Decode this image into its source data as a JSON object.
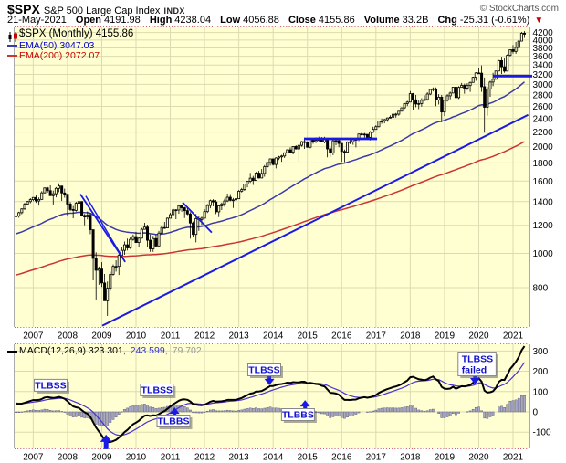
{
  "header": {
    "symbol": "$SPX",
    "name": "S&P 500 Large Cap Index",
    "exchange": "INDX",
    "copyright": "© StockCharts.com",
    "date": "21-May-2021",
    "fields": [
      {
        "label": "Open",
        "value": "4191.98"
      },
      {
        "label": "High",
        "value": "4238.04"
      },
      {
        "label": "Low",
        "value": "4056.88"
      },
      {
        "label": "Close",
        "value": "4155.86"
      },
      {
        "label": "Volume",
        "value": "33.2B"
      },
      {
        "label": "Chg",
        "value": "-25.31 (-0.61%)"
      }
    ],
    "chg_direction": "down",
    "chg_arrow_glyph": "▼"
  },
  "legend": {
    "spx": "$SPX (Monthly) 4155.86",
    "ema50": "EMA(50) 3047.03",
    "ema200": "EMA(200) 2072.07"
  },
  "macd_legend": {
    "black": "MACD(12,26,9) 323.301,",
    "blue": "243.599,",
    "gray": "79.702"
  },
  "colors": {
    "panel_bg": "#FFFFD2",
    "grid": "#DBDBB0",
    "tick_dash": "#CC5555",
    "side_border": "#AAAAAA",
    "candle": "#000000",
    "ema50": "#3A3AA8",
    "ema200": "#CC3333",
    "annotation_blue": "#1A1AE6",
    "macd_line": "#000000",
    "macd_signal": "#4B30CF",
    "histogram_fill": "#A9A9C9",
    "histogram_stroke": "#5F5F7E",
    "axis_text": "#000000",
    "ann_text_blue": "#1111CC",
    "box_border": "#888888",
    "box_shadow": "rgba(90,90,90,0.5)"
  },
  "chart_data": {
    "type": "candlestick",
    "title": "$SPX S&P 500 Large Cap Index (Monthly) with EMA(50), EMA(200) and MACD(12,26,9)",
    "timeframe": "Monthly, Jul 2006 - May 2021",
    "x_years": [
      "2007",
      "2008",
      "2009",
      "2010",
      "2011",
      "2012",
      "2013",
      "2014",
      "2015",
      "2016",
      "2017",
      "2018",
      "2019",
      "2020",
      "2021"
    ],
    "price_panel": {
      "log_scale": true,
      "ylim": [
        620,
        4343
      ],
      "yticks": [
        800,
        1000,
        1200,
        1400,
        1600,
        1800,
        2000,
        2200,
        2400,
        2600,
        2800,
        3000,
        3200,
        3400,
        3600,
        3800,
        4000,
        4200
      ],
      "first_open": 1270,
      "ema50_start": 1130,
      "ema200_start": 865,
      "candles": [
        [
          1280,
          1225,
          1276
        ],
        [
          1311,
          1261,
          1303
        ],
        [
          1340,
          1290,
          1335
        ],
        [
          1389,
          1327,
          1377
        ],
        [
          1407,
          1377,
          1400
        ],
        [
          1432,
          1385,
          1418
        ],
        [
          1441,
          1404,
          1438
        ],
        [
          1461,
          1389,
          1406
        ],
        [
          1438,
          1364,
          1420
        ],
        [
          1498,
          1416,
          1482
        ],
        [
          1535,
          1476,
          1530
        ],
        [
          1540,
          1484,
          1503
        ],
        [
          1556,
          1455,
          1455
        ],
        [
          1504,
          1370,
          1473
        ],
        [
          1538,
          1439,
          1526
        ],
        [
          1576,
          1489,
          1549
        ],
        [
          1552,
          1406,
          1481
        ],
        [
          1523,
          1436,
          1468
        ],
        [
          1471,
          1270,
          1378
        ],
        [
          1396,
          1316,
          1330
        ],
        [
          1360,
          1256,
          1322
        ],
        [
          1398,
          1312,
          1385
        ],
        [
          1440,
          1373,
          1400
        ],
        [
          1404,
          1272,
          1280
        ],
        [
          1292,
          1200,
          1267
        ],
        [
          1313,
          1247,
          1282
        ],
        [
          1303,
          1133,
          1166
        ],
        [
          1167,
          839,
          968
        ],
        [
          1007,
          741,
          896
        ],
        [
          918,
          815,
          903
        ],
        [
          944,
          804,
          825
        ],
        [
          875,
          735,
          735
        ],
        [
          833,
          666,
          797
        ],
        [
          888,
          783,
          872
        ],
        [
          930,
          866,
          919
        ],
        [
          956,
          888,
          919
        ],
        [
          996,
          869,
          987
        ],
        [
          1039,
          978,
          1020
        ],
        [
          1080,
          991,
          1057
        ],
        [
          1101,
          1019,
          1036
        ],
        [
          1113,
          1029,
          1095
        ],
        [
          1130,
          1085,
          1115
        ],
        [
          1150,
          1071,
          1073
        ],
        [
          1112,
          1044,
          1104
        ],
        [
          1180,
          1101,
          1169
        ],
        [
          1220,
          1170,
          1186
        ],
        [
          1205,
          1040,
          1089
        ],
        [
          1131,
          1010,
          1030
        ],
        [
          1120,
          1010,
          1101
        ],
        [
          1129,
          1039,
          1049
        ],
        [
          1157,
          1049,
          1141
        ],
        [
          1196,
          1131,
          1183
        ],
        [
          1227,
          1173,
          1180
        ],
        [
          1262,
          1186,
          1257
        ],
        [
          1302,
          1257,
          1286
        ],
        [
          1344,
          1289,
          1327
        ],
        [
          1332,
          1249,
          1325
        ],
        [
          1370,
          1294,
          1363
        ],
        [
          1370,
          1311,
          1345
        ],
        [
          1353,
          1258,
          1320
        ],
        [
          1356,
          1282,
          1292
        ],
        [
          1307,
          1101,
          1218
        ],
        [
          1230,
          1114,
          1131
        ],
        [
          1292,
          1074,
          1253
        ],
        [
          1277,
          1158,
          1246
        ],
        [
          1269,
          1202,
          1257
        ],
        [
          1333,
          1258,
          1312
        ],
        [
          1378,
          1300,
          1365
        ],
        [
          1419,
          1340,
          1408
        ],
        [
          1422,
          1357,
          1397
        ],
        [
          1415,
          1291,
          1310
        ],
        [
          1363,
          1266,
          1362
        ],
        [
          1391,
          1325,
          1379
        ],
        [
          1426,
          1354,
          1406
        ],
        [
          1474,
          1396,
          1440
        ],
        [
          1470,
          1403,
          1412
        ],
        [
          1433,
          1343,
          1416
        ],
        [
          1448,
          1398,
          1426
        ],
        [
          1509,
          1426,
          1498
        ],
        [
          1530,
          1485,
          1514
        ],
        [
          1570,
          1501,
          1569
        ],
        [
          1597,
          1536,
          1597
        ],
        [
          1687,
          1581,
          1630
        ],
        [
          1654,
          1560,
          1606
        ],
        [
          1698,
          1604,
          1685
        ],
        [
          1709,
          1627,
          1632
        ],
        [
          1730,
          1633,
          1681
        ],
        [
          1775,
          1646,
          1756
        ],
        [
          1813,
          1746,
          1805
        ],
        [
          1849,
          1768,
          1848
        ],
        [
          1851,
          1770,
          1782
        ],
        [
          1868,
          1737,
          1859
        ],
        [
          1884,
          1834,
          1872
        ],
        [
          1897,
          1814,
          1883
        ],
        [
          1924,
          1859,
          1923
        ],
        [
          1968,
          1915,
          1960
        ],
        [
          1991,
          1930,
          1930
        ],
        [
          2005,
          1904,
          2003
        ],
        [
          2019,
          1964,
          1972
        ],
        [
          2024,
          1820,
          2018
        ],
        [
          2076,
          2001,
          2067
        ],
        [
          2093,
          1972,
          2058
        ],
        [
          2072,
          1988,
          1994
        ],
        [
          2120,
          1980,
          2104
        ],
        [
          2117,
          2040,
          2067
        ],
        [
          2126,
          2048,
          2085
        ],
        [
          2135,
          2067,
          2107
        ],
        [
          2130,
          2056,
          2063
        ],
        [
          2133,
          2044,
          2103
        ],
        [
          2113,
          1867,
          1972
        ],
        [
          1995,
          1871,
          1920
        ],
        [
          2095,
          1893,
          2079
        ],
        [
          2116,
          2019,
          2080
        ],
        [
          2104,
          1993,
          2043
        ],
        [
          2038,
          1812,
          1940
        ],
        [
          1963,
          1810,
          1932
        ],
        [
          2072,
          1932,
          2059
        ],
        [
          2111,
          2033,
          2065
        ],
        [
          2103,
          2025,
          2096
        ],
        [
          2120,
          1991,
          2098
        ],
        [
          2177,
          2074,
          2173
        ],
        [
          2193,
          2147,
          2170
        ],
        [
          2187,
          2119,
          2168
        ],
        [
          2169,
          2114,
          2126
        ],
        [
          2214,
          2083,
          2198
        ],
        [
          2277,
          2187,
          2238
        ],
        [
          2300,
          2245,
          2278
        ],
        [
          2371,
          2267,
          2363
        ],
        [
          2400,
          2322,
          2362
        ],
        [
          2398,
          2328,
          2384
        ],
        [
          2418,
          2352,
          2411
        ],
        [
          2453,
          2405,
          2423
        ],
        [
          2484,
          2407,
          2470
        ],
        [
          2490,
          2417,
          2471
        ],
        [
          2519,
          2446,
          2519
        ],
        [
          2582,
          2520,
          2575
        ],
        [
          2657,
          2557,
          2647
        ],
        [
          2694,
          2605,
          2673
        ],
        [
          2872,
          2682,
          2823
        ],
        [
          2835,
          2532,
          2713
        ],
        [
          2801,
          2585,
          2640
        ],
        [
          2717,
          2553,
          2648
        ],
        [
          2742,
          2594,
          2705
        ],
        [
          2791,
          2691,
          2718
        ],
        [
          2848,
          2698,
          2816
        ],
        [
          2916,
          2796,
          2901
        ],
        [
          2940,
          2864,
          2913
        ],
        [
          2939,
          2603,
          2711
        ],
        [
          2815,
          2631,
          2760
        ],
        [
          2800,
          2346,
          2506
        ],
        [
          2708,
          2443,
          2704
        ],
        [
          2813,
          2681,
          2784
        ],
        [
          2860,
          2722,
          2834
        ],
        [
          2948,
          2848,
          2945
        ],
        [
          2954,
          2750,
          2752
        ],
        [
          2964,
          2728,
          2941
        ],
        [
          3027,
          2952,
          2980
        ],
        [
          3013,
          2822,
          2926
        ],
        [
          3021,
          2891,
          2976
        ],
        [
          3050,
          2855,
          3037
        ],
        [
          3154,
          3036,
          3140
        ],
        [
          3247,
          3070,
          3230
        ],
        [
          3337,
          3214,
          3225
        ],
        [
          3393,
          2855,
          2954
        ],
        [
          3136,
          2191,
          2584
        ],
        [
          2954,
          2447,
          2912
        ],
        [
          3068,
          2766,
          3044
        ],
        [
          3233,
          2965,
          3100
        ],
        [
          3279,
          3101,
          3271
        ],
        [
          3514,
          3284,
          3500
        ],
        [
          3588,
          3209,
          3363
        ],
        [
          3549,
          3233,
          3269
        ],
        [
          3645,
          3279,
          3621
        ],
        [
          3760,
          3596,
          3756
        ],
        [
          3870,
          3662,
          3714
        ],
        [
          3950,
          3656,
          3811
        ],
        [
          3994,
          3723,
          3972
        ],
        [
          4218,
          3992,
          4181
        ],
        [
          4238.04,
          4056.88,
          4155.86
        ]
      ],
      "trendlines": [
        {
          "from_idx": 22.5,
          "from_price": 1469,
          "to_idx": 38.2,
          "to_price": 946,
          "w": 1.8
        },
        {
          "from_idx": 24.4,
          "from_price": 1452,
          "to_idx": 38.2,
          "to_price": 946,
          "w": 1.4
        },
        {
          "from_idx": 58.3,
          "from_price": 1393,
          "to_idx": 68.5,
          "to_price": 1145,
          "w": 1.8
        },
        {
          "from_idx": 30.2,
          "from_price": 625,
          "to_idx": 179.3,
          "to_price": 2460,
          "w": 2
        }
      ],
      "hlines": [
        {
          "price": 2105,
          "from_idx": 100.8,
          "to_idx": 126.4,
          "w": 2.8
        },
        {
          "price": 3165,
          "from_idx": 167,
          "to_idx": 180.8,
          "w": 2.8
        }
      ]
    },
    "macd_panel": {
      "params": [
        12,
        26,
        9
      ],
      "ylim": [
        -180,
        333
      ],
      "yticks": [
        -100,
        0,
        100,
        200,
        300
      ],
      "seeds": {
        "ema12": 1276,
        "ema26": 1233,
        "signal": 44
      },
      "annotations": [
        {
          "kind": "arrow",
          "dir": "up",
          "idx": 31.5,
          "v": -112,
          "size": "big"
        },
        {
          "kind": "arrow",
          "dir": "up",
          "idx": 55.5,
          "v": 22,
          "size": "small"
        },
        {
          "kind": "arrow",
          "dir": "down",
          "idx": 88.7,
          "v": 131,
          "size": "small"
        },
        {
          "kind": "arrow",
          "dir": "up",
          "idx": 101.2,
          "v": 58,
          "size": "small"
        },
        {
          "kind": "arrow",
          "dir": "down",
          "idx": 160.7,
          "v": 135,
          "size": "small"
        },
        {
          "kind": "box",
          "lines": [
            "TLBSS"
          ],
          "idx": 12.1,
          "v": 131
        },
        {
          "kind": "box",
          "lines": [
            "TLBSS"
          ],
          "idx": 49.3,
          "v": 108
        },
        {
          "kind": "box",
          "lines": [
            "TLBBS"
          ],
          "idx": 55.1,
          "v": -45
        },
        {
          "kind": "box",
          "lines": [
            "TLBSS"
          ],
          "idx": 86.9,
          "v": 207
        },
        {
          "kind": "box",
          "lines": [
            "TLBBS"
          ],
          "idx": 98.7,
          "v": -13.5
        },
        {
          "kind": "box",
          "lines": [
            "TLBSS",
            "failed"
          ],
          "idx": 161.4,
          "v": 236
        }
      ]
    }
  }
}
